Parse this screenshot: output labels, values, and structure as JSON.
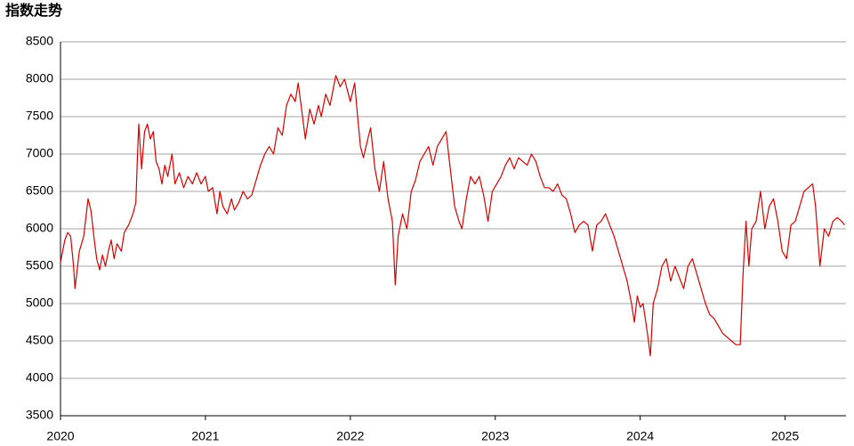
{
  "chart_data": {
    "type": "line",
    "title": "指数走势",
    "xlim": [
      2020,
      2025.42
    ],
    "xticks": [
      2020,
      2021,
      2022,
      2023,
      2024,
      2025
    ],
    "ylim": [
      3500,
      8500
    ],
    "yticks": [
      3500,
      4000,
      4500,
      5000,
      5500,
      6000,
      6500,
      7000,
      7500,
      8000,
      8500
    ],
    "grid": true,
    "series": [
      {
        "color": "#d40000",
        "x": [
          2020.0,
          2020.03,
          2020.05,
          2020.07,
          2020.09,
          2020.1,
          2020.13,
          2020.16,
          2020.19,
          2020.21,
          2020.23,
          2020.25,
          2020.27,
          2020.29,
          2020.31,
          2020.33,
          2020.35,
          2020.37,
          2020.39,
          2020.42,
          2020.44,
          2020.47,
          2020.5,
          2020.52,
          2020.53,
          2020.54,
          2020.56,
          2020.58,
          2020.6,
          2020.62,
          2020.64,
          2020.66,
          2020.68,
          2020.7,
          2020.72,
          2020.74,
          2020.77,
          2020.79,
          2020.82,
          2020.85,
          2020.88,
          2020.91,
          2020.94,
          2020.97,
          2021.0,
          2021.02,
          2021.05,
          2021.08,
          2021.1,
          2021.12,
          2021.15,
          2021.18,
          2021.2,
          2021.23,
          2021.26,
          2021.29,
          2021.32,
          2021.35,
          2021.38,
          2021.41,
          2021.44,
          2021.47,
          2021.5,
          2021.53,
          2021.56,
          2021.59,
          2021.62,
          2021.64,
          2021.67,
          2021.69,
          2021.72,
          2021.75,
          2021.78,
          2021.8,
          2021.83,
          2021.86,
          2021.9,
          2021.93,
          2021.96,
          2022.0,
          2022.03,
          2022.05,
          2022.07,
          2022.09,
          2022.12,
          2022.14,
          2022.17,
          2022.2,
          2022.23,
          2022.26,
          2022.29,
          2022.31,
          2022.33,
          2022.36,
          2022.39,
          2022.42,
          2022.45,
          2022.48,
          2022.51,
          2022.54,
          2022.57,
          2022.6,
          2022.63,
          2022.66,
          2022.69,
          2022.72,
          2022.75,
          2022.77,
          2022.8,
          2022.83,
          2022.86,
          2022.89,
          2022.92,
          2022.95,
          2022.98,
          2023.01,
          2023.04,
          2023.07,
          2023.1,
          2023.13,
          2023.16,
          2023.19,
          2023.22,
          2023.25,
          2023.28,
          2023.31,
          2023.34,
          2023.37,
          2023.4,
          2023.43,
          2023.46,
          2023.49,
          2023.52,
          2023.55,
          2023.58,
          2023.61,
          2023.64,
          2023.67,
          2023.7,
          2023.73,
          2023.76,
          2023.79,
          2023.82,
          2023.85,
          2023.88,
          2023.91,
          2023.94,
          2023.96,
          2023.98,
          2024.0,
          2024.02,
          2024.05,
          2024.07,
          2024.09,
          2024.12,
          2024.15,
          2024.18,
          2024.21,
          2024.24,
          2024.27,
          2024.3,
          2024.33,
          2024.36,
          2024.39,
          2024.42,
          2024.45,
          2024.48,
          2024.51,
          2024.54,
          2024.57,
          2024.6,
          2024.63,
          2024.66,
          2024.69,
          2024.71,
          2024.73,
          2024.75,
          2024.77,
          2024.8,
          2024.83,
          2024.86,
          2024.89,
          2024.92,
          2024.95,
          2024.98,
          2025.01,
          2025.04,
          2025.07,
          2025.1,
          2025.13,
          2025.16,
          2025.19,
          2025.21,
          2025.24,
          2025.27,
          2025.3,
          2025.33,
          2025.36,
          2025.39,
          2025.41
        ],
        "values": [
          5550,
          5850,
          5950,
          5900,
          5500,
          5200,
          5700,
          5900,
          6400,
          6250,
          5900,
          5600,
          5450,
          5650,
          5500,
          5700,
          5850,
          5600,
          5800,
          5700,
          5950,
          6050,
          6200,
          6350,
          6900,
          7400,
          6800,
          7300,
          7400,
          7200,
          7300,
          6900,
          6800,
          6600,
          6850,
          6700,
          7000,
          6600,
          6750,
          6550,
          6700,
          6600,
          6750,
          6600,
          6700,
          6500,
          6550,
          6200,
          6500,
          6300,
          6200,
          6400,
          6250,
          6350,
          6500,
          6400,
          6450,
          6650,
          6850,
          7000,
          7100,
          7000,
          7350,
          7250,
          7650,
          7800,
          7700,
          7950,
          7500,
          7200,
          7600,
          7400,
          7650,
          7500,
          7800,
          7650,
          8050,
          7900,
          8000,
          7700,
          7950,
          7500,
          7100,
          6950,
          7200,
          7350,
          6800,
          6500,
          6900,
          6400,
          6100,
          5250,
          5900,
          6200,
          6000,
          6500,
          6650,
          6900,
          7000,
          7100,
          6850,
          7100,
          7200,
          7300,
          6800,
          6300,
          6100,
          6000,
          6400,
          6700,
          6600,
          6700,
          6450,
          6100,
          6500,
          6600,
          6700,
          6850,
          6950,
          6800,
          6950,
          6900,
          6850,
          7000,
          6900,
          6700,
          6550,
          6550,
          6500,
          6600,
          6450,
          6400,
          6200,
          5950,
          6050,
          6100,
          6050,
          5700,
          6050,
          6100,
          6200,
          6050,
          5900,
          5700,
          5500,
          5300,
          5000,
          4750,
          5100,
          4950,
          5000,
          4600,
          4300,
          5000,
          5200,
          5500,
          5600,
          5300,
          5500,
          5350,
          5200,
          5500,
          5600,
          5400,
          5200,
          5000,
          4850,
          4800,
          4700,
          4600,
          4550,
          4500,
          4450,
          4450,
          5400,
          6100,
          5500,
          6000,
          6100,
          6500,
          6000,
          6300,
          6400,
          6100,
          5700,
          5600,
          6050,
          6100,
          6300,
          6500,
          6550,
          6600,
          6300,
          5500,
          6000,
          5900,
          6100,
          6150,
          6100,
          6050
        ]
      }
    ]
  }
}
